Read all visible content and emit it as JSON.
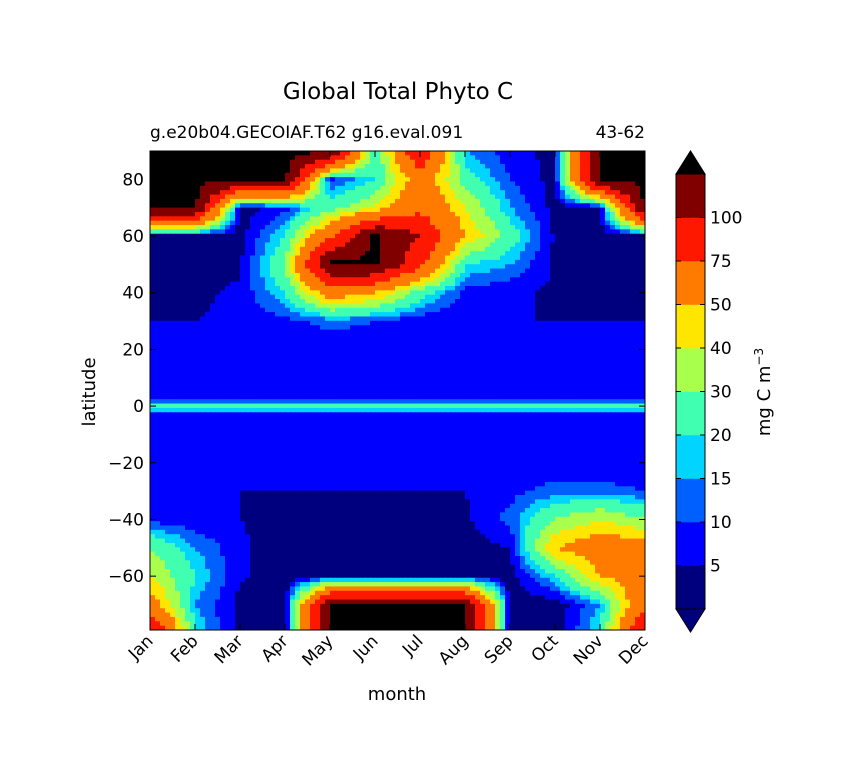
{
  "chart_data": {
    "type": "heatmap",
    "title": "Global Total Phyto C",
    "subtitle_left": "g.e20b04.GECOIAF.T62 g16.eval.091",
    "subtitle_right": "43-62",
    "xlabel": "month",
    "ylabel": "latitude",
    "x_ticks": [
      "Jan",
      "Feb",
      "Mar",
      "Apr",
      "May",
      "Jun",
      "Jul",
      "Aug",
      "Sep",
      "Oct",
      "Nov",
      "Dec"
    ],
    "y_ticks": [
      80,
      60,
      40,
      20,
      0,
      -20,
      -40,
      -60
    ],
    "y_tick_labels": [
      "80",
      "60",
      "40",
      "20",
      "0",
      "−20",
      "−40",
      "−60"
    ],
    "ylim": [
      -79,
      90
    ],
    "colorbar": {
      "label": "mg C m",
      "label_superscript": "−3",
      "levels": [
        0,
        5,
        10,
        15,
        20,
        30,
        40,
        50,
        75,
        100,
        125
      ],
      "tick_labels": [
        "5",
        "10",
        "15",
        "20",
        "30",
        "40",
        "50",
        "75",
        "100"
      ],
      "colors": [
        "#00007f",
        "#0000ff",
        "#0060ff",
        "#00d4ff",
        "#40ffb0",
        "#a8ff4c",
        "#ffe600",
        "#ff7b00",
        "#ff1800",
        "#800000"
      ],
      "under_color": "#00007f",
      "over_color": "#000000"
    },
    "grid_months": [
      0,
      1,
      2,
      3,
      4,
      5,
      6,
      7,
      8,
      9,
      10,
      11
    ],
    "grid_lats": [
      90,
      80,
      70,
      60,
      50,
      40,
      30,
      20,
      10,
      3,
      0,
      -3,
      -10,
      -20,
      -30,
      -40,
      -50,
      -60,
      -70,
      -79
    ],
    "values": [
      [
        130,
        130,
        130,
        130,
        130,
        20,
        100,
        15,
        7,
        3,
        130,
        130
      ],
      [
        130,
        130,
        130,
        130,
        8,
        20,
        60,
        25,
        10,
        3,
        130,
        130
      ],
      [
        130,
        130,
        2,
        8,
        25,
        40,
        70,
        40,
        15,
        3,
        2,
        130
      ],
      [
        2,
        2,
        3,
        20,
        70,
        130,
        100,
        50,
        25,
        4,
        2,
        1
      ],
      [
        3,
        3,
        4,
        30,
        130,
        130,
        80,
        20,
        15,
        4,
        3,
        2
      ],
      [
        4,
        4,
        6,
        20,
        60,
        50,
        25,
        8,
        6,
        4,
        4,
        3
      ],
      [
        5,
        5,
        6,
        8,
        12,
        10,
        6,
        5,
        5,
        5,
        5,
        5
      ],
      [
        6,
        6,
        6,
        6,
        6,
        6,
        6,
        6,
        6,
        6,
        6,
        6
      ],
      [
        6,
        6,
        6,
        6,
        6,
        6,
        6,
        6,
        6,
        6,
        6,
        6
      ],
      [
        8,
        8,
        8,
        8,
        8,
        8,
        8,
        8,
        8,
        8,
        8,
        8
      ],
      [
        22,
        22,
        22,
        22,
        22,
        22,
        22,
        22,
        22,
        22,
        22,
        22
      ],
      [
        8,
        8,
        8,
        8,
        8,
        8,
        8,
        8,
        8,
        8,
        8,
        8
      ],
      [
        6,
        6,
        6,
        6,
        6,
        6,
        6,
        6,
        6,
        6,
        6,
        6
      ],
      [
        5,
        5,
        5,
        5,
        5,
        5,
        5,
        5,
        6,
        6,
        6,
        6
      ],
      [
        6,
        5,
        5,
        5,
        5,
        5,
        5,
        5,
        8,
        12,
        12,
        10
      ],
      [
        8,
        6,
        5,
        3,
        2,
        2,
        3,
        4,
        12,
        30,
        40,
        30
      ],
      [
        30,
        15,
        6,
        2,
        1,
        1,
        1,
        2,
        5,
        50,
        60,
        60
      ],
      [
        40,
        20,
        6,
        1,
        1,
        1,
        1,
        1,
        2,
        20,
        50,
        60
      ],
      [
        60,
        15,
        3,
        1,
        130,
        130,
        130,
        130,
        1,
        1,
        15,
        70
      ],
      [
        100,
        20,
        2,
        1,
        130,
        130,
        130,
        130,
        1,
        1,
        20,
        100
      ]
    ]
  }
}
